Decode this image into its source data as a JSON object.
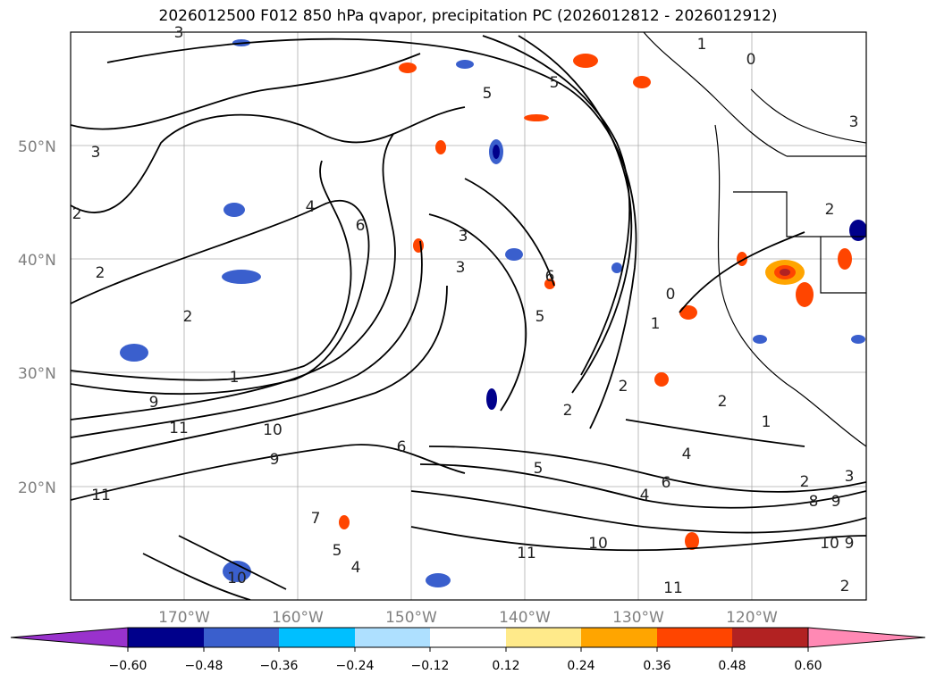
{
  "title": "2026012500 F012 850 hPa qvapor, precipitation PC (2026012812 - 2026012912)",
  "map": {
    "lat_labels": [
      "50°N",
      "40°N",
      "30°N",
      "20°N"
    ],
    "lon_labels": [
      "170°W",
      "160°W",
      "150°W",
      "140°W",
      "130°W",
      "120°W"
    ],
    "contour_labels": [
      "3",
      "5",
      "5",
      "1",
      "0",
      "3",
      "2",
      "4",
      "6",
      "2",
      "3",
      "3",
      "2",
      "1",
      "6",
      "5",
      "1",
      "0",
      "2",
      "2",
      "2",
      "1",
      "2",
      "3",
      "9",
      "11",
      "10",
      "9",
      "11",
      "7",
      "5",
      "4",
      "6",
      "10",
      "11",
      "4",
      "4",
      "6",
      "5",
      "2",
      "8",
      "9",
      "10",
      "9",
      "2",
      "3",
      "11",
      "10"
    ],
    "tick_color": "#808080",
    "coast_color": "#000000"
  },
  "colorbar": {
    "tick_labels": [
      "−0.60",
      "−0.48",
      "−0.36",
      "−0.24",
      "−0.12",
      "0.12",
      "0.24",
      "0.36",
      "0.48",
      "0.60"
    ],
    "colors": [
      "#9932cc",
      "#00008b",
      "#3a5fcd",
      "#00bfff",
      "#aee0ff",
      "#ffffff",
      "#ffea8a",
      "#ffa500",
      "#ff4500",
      "#b22222",
      "#ff89b4"
    ]
  }
}
